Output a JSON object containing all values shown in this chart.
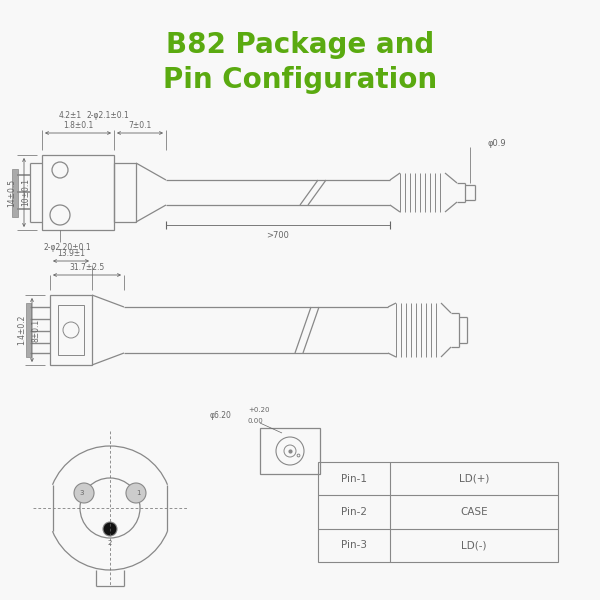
{
  "title_line1": "B82 Package and",
  "title_line2": "Pin Configuration",
  "title_color": "#5aaa10",
  "title_fontsize": 20,
  "bg_color": "#f8f8f8",
  "line_color": "#888888",
  "dim_color": "#666666",
  "table_data": [
    [
      "Pin-1",
      "LD(+)"
    ],
    [
      "Pin-2",
      "CASE"
    ],
    [
      "Pin-3",
      "LD(-)"
    ]
  ]
}
